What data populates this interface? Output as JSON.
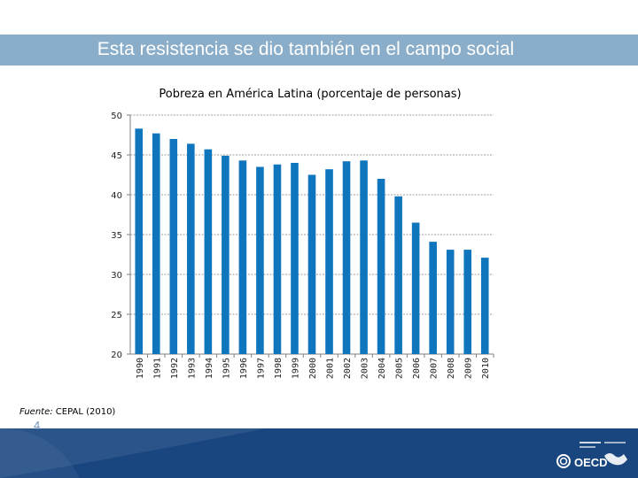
{
  "slide": {
    "title": "Esta resistencia se dio también en el campo social",
    "page_number": "4",
    "source_label": "Fuente:",
    "source_text": " CEPAL (2010)"
  },
  "colors": {
    "title_bar": "#8aaec9",
    "bar": "#0f75bd",
    "footer": "#1a4680"
  },
  "logo": {
    "text": "OECD"
  },
  "chart_data": {
    "type": "bar",
    "title": "Pobreza en América Latina (porcentaje de personas)",
    "xlabel": "",
    "ylabel": "",
    "ylim": [
      20,
      50
    ],
    "yticks": [
      20,
      25,
      30,
      35,
      40,
      45,
      50
    ],
    "grid": true,
    "categories": [
      "1990",
      "1991",
      "1992",
      "1993",
      "1994",
      "1995",
      "1996",
      "1997",
      "1998",
      "1999",
      "2000",
      "2001",
      "2002",
      "2003",
      "2004",
      "2005",
      "2006",
      "2007",
      "2008",
      "2009",
      "2010"
    ],
    "values": [
      48.3,
      47.7,
      47.0,
      46.4,
      45.7,
      44.9,
      44.3,
      43.5,
      43.8,
      44.0,
      42.5,
      43.2,
      44.2,
      44.3,
      42.0,
      39.8,
      36.5,
      34.1,
      33.1,
      33.1,
      32.1
    ]
  }
}
